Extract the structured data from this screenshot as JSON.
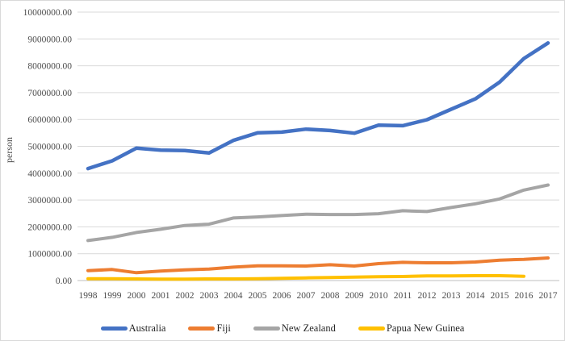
{
  "chart_data": {
    "type": "line",
    "title": "",
    "xlabel": "",
    "ylabel": "person",
    "ylim": [
      0,
      10000000
    ],
    "ytick_step": 1000000,
    "grid": true,
    "legend_position": "bottom",
    "axis_line_color": "#BFBFBF",
    "gridline_color": "#D9D9D9",
    "yticks": [
      "0.00",
      "1000000.00",
      "2000000.00",
      "3000000.00",
      "4000000.00",
      "5000000.00",
      "6000000.00",
      "7000000.00",
      "8000000.00",
      "9000000.00",
      "10000000.00"
    ],
    "x": [
      "1998",
      "1999",
      "2000",
      "2001",
      "2002",
      "2003",
      "2004",
      "2005",
      "2006",
      "2007",
      "2008",
      "2009",
      "2010",
      "2011",
      "2012",
      "2013",
      "2014",
      "2015",
      "2016",
      "2017"
    ],
    "series": [
      {
        "name": "Australia",
        "color": "#4472C4",
        "values": [
          4170000,
          4460000,
          4930000,
          4860000,
          4840000,
          4750000,
          5220000,
          5500000,
          5530000,
          5640000,
          5590000,
          5490000,
          5790000,
          5770000,
          5990000,
          6380000,
          6770000,
          7390000,
          8270000,
          8850000
        ]
      },
      {
        "name": "Fiji",
        "color": "#ED7D31",
        "values": [
          370000,
          410000,
          290000,
          350000,
          400000,
          430000,
          500000,
          550000,
          550000,
          540000,
          590000,
          540000,
          630000,
          680000,
          660000,
          660000,
          690000,
          760000,
          790000,
          840000
        ]
      },
      {
        "name": "New Zealand",
        "color": "#A5A5A5",
        "values": [
          1490000,
          1610000,
          1790000,
          1910000,
          2050000,
          2100000,
          2330000,
          2370000,
          2420000,
          2470000,
          2460000,
          2460000,
          2490000,
          2600000,
          2570000,
          2720000,
          2860000,
          3040000,
          3370000,
          3560000
        ]
      },
      {
        "name": "Papua New Guinea",
        "color": "#FFC000",
        "values": [
          70000,
          70000,
          60000,
          50000,
          50000,
          60000,
          60000,
          70000,
          80000,
          100000,
          110000,
          130000,
          140000,
          150000,
          170000,
          170000,
          180000,
          180000,
          160000,
          null
        ]
      }
    ]
  }
}
